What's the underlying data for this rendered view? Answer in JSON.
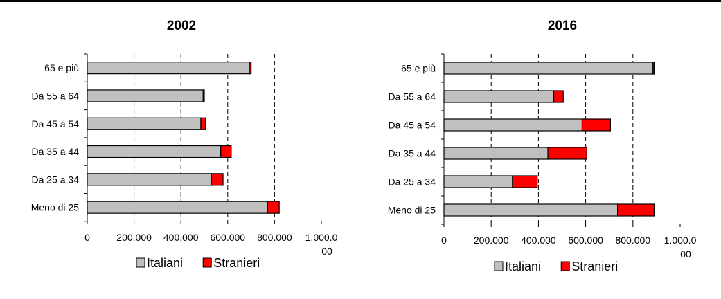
{
  "chart_data": [
    {
      "type": "bar",
      "orientation": "horizontal",
      "stacked": true,
      "title": "2002",
      "categories": [
        "65 e più",
        "Da 55 a 64",
        "Da 45 a 54",
        "Da 35 a 44",
        "Da 25 a 34",
        "Meno di 25"
      ],
      "series": [
        {
          "name": "Italiani",
          "values": [
            695000,
            495000,
            485000,
            570000,
            530000,
            770000
          ]
        },
        {
          "name": "Stranieri",
          "values": [
            5000,
            5000,
            20000,
            45000,
            50000,
            50000
          ]
        }
      ],
      "xlim": [
        0,
        1000000
      ],
      "x_tick_labels": [
        "0",
        "200.000",
        "400.000",
        "600.000",
        "800.000",
        "1.000.0",
        "00"
      ],
      "grid": "vertical dashed",
      "legend": "bottom"
    },
    {
      "type": "bar",
      "orientation": "horizontal",
      "stacked": true,
      "title": "2016",
      "categories": [
        "65 e più",
        "Da 55 a 64",
        "Da 45 a 54",
        "Da 35 a 44",
        "Da 25 a 34",
        "Meno di 25"
      ],
      "series": [
        {
          "name": "Italiani",
          "values": [
            885000,
            465000,
            585000,
            440000,
            290000,
            735000
          ]
        },
        {
          "name": "Stranieri",
          "values": [
            5000,
            40000,
            120000,
            165000,
            105000,
            155000
          ]
        }
      ],
      "xlim": [
        0,
        1000000
      ],
      "x_tick_labels": [
        "0",
        "200.000",
        "400.000",
        "600.000",
        "800.000",
        "1.000.0",
        "00"
      ],
      "grid": "vertical dashed",
      "legend": "bottom"
    }
  ],
  "colors": {
    "italiani": "#C0C0C0",
    "stranieri": "#FF0000",
    "grid": "#000000",
    "border": "#000000"
  }
}
